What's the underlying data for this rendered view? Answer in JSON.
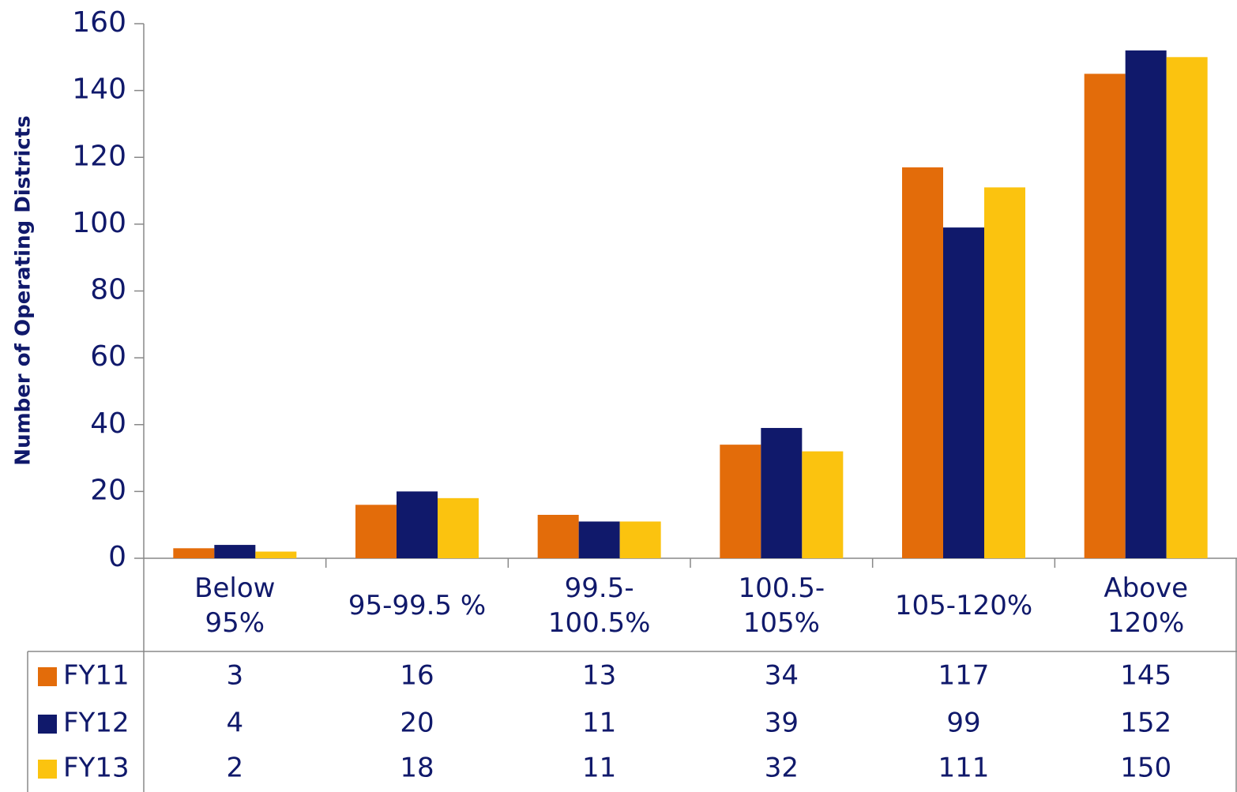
{
  "chart_data": {
    "type": "bar",
    "y_label": "Number of Operating Districts",
    "categories": [
      "Below\n95%",
      "95-99.5 %",
      "99.5-\n100.5%",
      "100.5-\n105%",
      "105-120%",
      "Above\n120%"
    ],
    "series": [
      {
        "name": "FY11",
        "color": "#e36c0a",
        "values": [
          3,
          16,
          13,
          34,
          117,
          145
        ]
      },
      {
        "name": "FY12",
        "color": "#10196b",
        "values": [
          4,
          20,
          11,
          39,
          99,
          152
        ]
      },
      {
        "name": "FY13",
        "color": "#fbc30f",
        "values": [
          2,
          18,
          11,
          32,
          111,
          150
        ]
      }
    ],
    "ylim": [
      0,
      160
    ],
    "yticks": [
      0,
      20,
      40,
      60,
      80,
      100,
      120,
      140,
      160
    ],
    "grid": false
  }
}
